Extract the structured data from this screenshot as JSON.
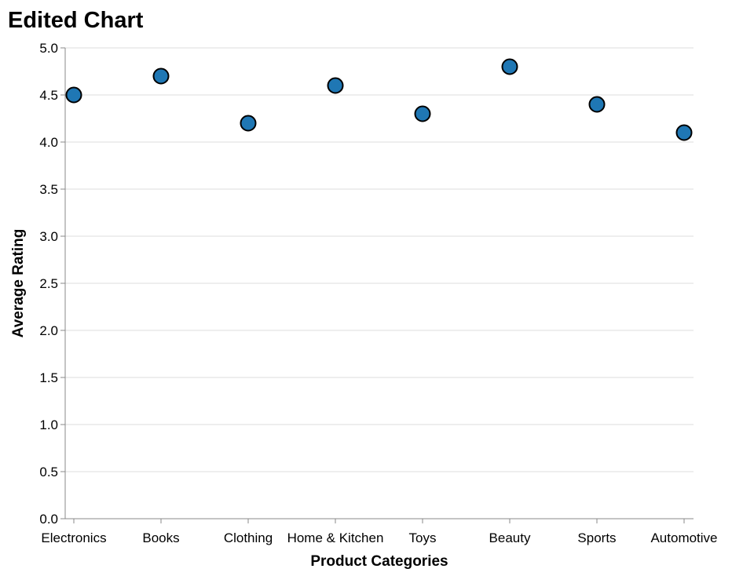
{
  "chart_data": {
    "type": "scatter",
    "title": "Edited Chart",
    "xlabel": "Product Categories",
    "ylabel": "Average Rating",
    "categories": [
      "Electronics",
      "Books",
      "Clothing",
      "Home & Kitchen",
      "Toys",
      "Beauty",
      "Sports",
      "Automotive"
    ],
    "values": [
      4.5,
      4.7,
      4.2,
      4.6,
      4.3,
      4.8,
      4.4,
      4.1
    ],
    "ylim": [
      0,
      5
    ],
    "yticks": [
      "0.0",
      "0.5",
      "1.0",
      "1.5",
      "2.0",
      "2.5",
      "3.0",
      "3.5",
      "4.0",
      "4.5",
      "5.0"
    ],
    "grid": true,
    "point_color": "#1f77b4",
    "point_stroke": "#000000"
  }
}
